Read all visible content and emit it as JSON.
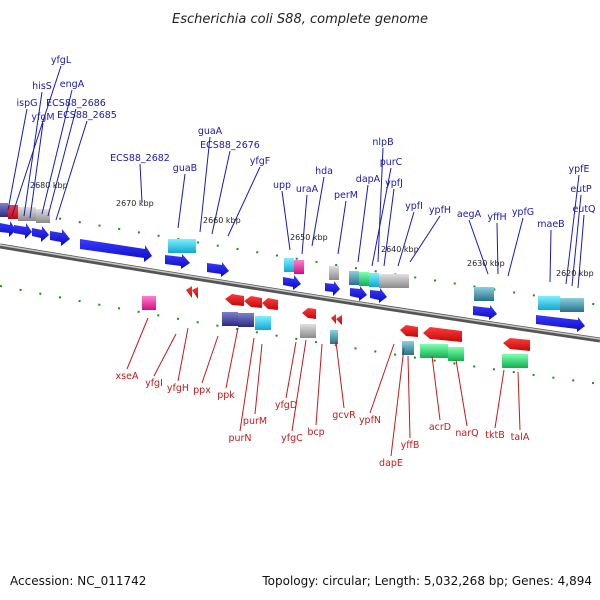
{
  "title": "Escherichia coli S88, complete genome",
  "accession": "Accession: NC_011742",
  "summary": "Topology: circular; Length: 5,032,268 bp; Genes: 4,894",
  "scale_labels": [
    "2680 kbp",
    "2670 kbp",
    "2660 kbp",
    "2650 kbp",
    "2640 kbp",
    "2630 kbp",
    "2620 kbp"
  ],
  "forward_genes": [
    "yfgL",
    "hisS",
    "engA",
    "ispG",
    "ECS88_2686",
    "yfgM",
    "ECS88_2685",
    "guaA",
    "ECS88_2676",
    "ECS88_2682",
    "yfgF",
    "guaB",
    "hda",
    "upp",
    "uraA",
    "nlpB",
    "purC",
    "dapA",
    "perM",
    "ypfJ",
    "ypfI",
    "ypfH",
    "aegA",
    "yffH",
    "ypfG",
    "maeB",
    "ypfE",
    "eutP",
    "eutQ"
  ],
  "reverse_genes": [
    "xseA",
    "yfgI",
    "yfgH",
    "ppx",
    "ppk",
    "purM",
    "purN",
    "yfgD",
    "yfgC",
    "bcp",
    "gcvR",
    "ypfN",
    "dapE",
    "yffB",
    "acrD",
    "narQ",
    "tktB",
    "talA"
  ],
  "colors": {
    "forward_label": "#1a1ab3",
    "reverse_label": "#c41a1a",
    "forward_gene": "#1010e0",
    "reverse_gene": "#e01010",
    "backbone": "#7f7f7f",
    "tick": "#1a8f1a"
  }
}
